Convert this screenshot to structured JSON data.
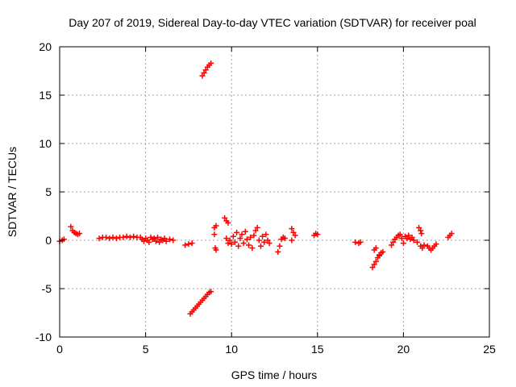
{
  "chart_data": {
    "type": "scatter",
    "title": "Day 207 of 2019, Sidereal Day-to-day VTEC variation (SDTVAR) for receiver poal",
    "xlabel": "GPS time / hours",
    "ylabel": "SDTVAR / TECUs",
    "xlim": [
      0,
      25
    ],
    "ylim": [
      -10,
      20
    ],
    "xticks": [
      0,
      5,
      10,
      15,
      20,
      25
    ],
    "yticks": [
      -10,
      -5,
      0,
      5,
      10,
      15,
      20
    ],
    "grid": true,
    "marker": "plus",
    "color": "#ff0000",
    "series": [
      {
        "name": "SDTVAR",
        "points": [
          [
            0.0,
            -0.1
          ],
          [
            0.15,
            0.0
          ],
          [
            0.25,
            0.1
          ],
          [
            0.65,
            1.4
          ],
          [
            0.75,
            1.0
          ],
          [
            0.85,
            0.8
          ],
          [
            0.95,
            0.7
          ],
          [
            1.05,
            0.6
          ],
          [
            1.15,
            0.7
          ],
          [
            2.3,
            0.2
          ],
          [
            2.5,
            0.3
          ],
          [
            2.7,
            0.3
          ],
          [
            2.9,
            0.2
          ],
          [
            3.1,
            0.3
          ],
          [
            3.3,
            0.2
          ],
          [
            3.5,
            0.3
          ],
          [
            3.7,
            0.3
          ],
          [
            3.9,
            0.4
          ],
          [
            4.1,
            0.3
          ],
          [
            4.3,
            0.4
          ],
          [
            4.5,
            0.3
          ],
          [
            4.7,
            0.3
          ],
          [
            4.8,
            0.1
          ],
          [
            4.9,
            -0.1
          ],
          [
            5.0,
            0.2
          ],
          [
            5.1,
            0.0
          ],
          [
            5.2,
            -0.2
          ],
          [
            5.3,
            0.3
          ],
          [
            5.4,
            0.1
          ],
          [
            5.5,
            0.2
          ],
          [
            5.6,
            -0.1
          ],
          [
            5.7,
            0.3
          ],
          [
            5.8,
            -0.2
          ],
          [
            5.9,
            0.1
          ],
          [
            6.0,
            0.0
          ],
          [
            6.1,
            0.2
          ],
          [
            6.2,
            -0.1
          ],
          [
            6.4,
            0.1
          ],
          [
            6.6,
            0.0
          ],
          [
            7.3,
            -0.5
          ],
          [
            7.5,
            -0.4
          ],
          [
            7.7,
            -0.3
          ],
          [
            7.6,
            -7.6
          ],
          [
            7.7,
            -7.4
          ],
          [
            7.8,
            -7.2
          ],
          [
            7.9,
            -7.0
          ],
          [
            8.0,
            -6.8
          ],
          [
            8.1,
            -6.6
          ],
          [
            8.2,
            -6.4
          ],
          [
            8.3,
            -6.2
          ],
          [
            8.4,
            -6.0
          ],
          [
            8.5,
            -5.8
          ],
          [
            8.6,
            -5.6
          ],
          [
            8.7,
            -5.4
          ],
          [
            8.8,
            -5.3
          ],
          [
            8.3,
            17.0
          ],
          [
            8.4,
            17.3
          ],
          [
            8.5,
            17.6
          ],
          [
            8.6,
            17.9
          ],
          [
            8.7,
            18.1
          ],
          [
            8.8,
            18.3
          ],
          [
            9.0,
            1.3
          ],
          [
            9.1,
            1.5
          ],
          [
            9.0,
            0.6
          ],
          [
            9.05,
            -0.8
          ],
          [
            9.1,
            -1.0
          ],
          [
            9.6,
            2.3
          ],
          [
            9.7,
            2.0
          ],
          [
            9.8,
            1.8
          ],
          [
            9.7,
            0.2
          ],
          [
            9.8,
            -0.3
          ],
          [
            9.9,
            0.0
          ],
          [
            10.0,
            -0.4
          ],
          [
            10.1,
            0.4
          ],
          [
            10.2,
            -0.2
          ],
          [
            10.3,
            0.8
          ],
          [
            10.4,
            -0.6
          ],
          [
            10.5,
            0.2
          ],
          [
            10.6,
            0.6
          ],
          [
            10.7,
            -0.3
          ],
          [
            10.8,
            0.9
          ],
          [
            10.9,
            0.1
          ],
          [
            11.0,
            -0.5
          ],
          [
            11.1,
            0.3
          ],
          [
            11.2,
            -0.8
          ],
          [
            11.3,
            0.5
          ],
          [
            11.4,
            1.0
          ],
          [
            11.5,
            1.3
          ],
          [
            11.6,
            0.0
          ],
          [
            11.7,
            -0.6
          ],
          [
            11.8,
            0.4
          ],
          [
            11.9,
            -0.2
          ],
          [
            12.0,
            0.6
          ],
          [
            12.1,
            0.0
          ],
          [
            12.2,
            -0.3
          ],
          [
            12.7,
            -1.2
          ],
          [
            12.8,
            -0.6
          ],
          [
            12.9,
            0.1
          ],
          [
            13.0,
            0.3
          ],
          [
            13.1,
            0.2
          ],
          [
            13.5,
            1.2
          ],
          [
            13.6,
            0.8
          ],
          [
            13.5,
            0.0
          ],
          [
            13.7,
            0.5
          ],
          [
            14.8,
            0.5
          ],
          [
            14.9,
            0.7
          ],
          [
            15.0,
            0.6
          ],
          [
            17.2,
            -0.2
          ],
          [
            17.4,
            -0.3
          ],
          [
            17.5,
            -0.2
          ],
          [
            18.2,
            -2.8
          ],
          [
            18.3,
            -2.5
          ],
          [
            18.4,
            -2.2
          ],
          [
            18.5,
            -1.8
          ],
          [
            18.6,
            -1.5
          ],
          [
            18.7,
            -1.3
          ],
          [
            18.8,
            -1.2
          ],
          [
            18.3,
            -1.0
          ],
          [
            18.4,
            -0.8
          ],
          [
            18.6,
            -1.6
          ],
          [
            19.3,
            -0.5
          ],
          [
            19.4,
            -0.2
          ],
          [
            19.5,
            0.1
          ],
          [
            19.6,
            0.3
          ],
          [
            19.7,
            0.5
          ],
          [
            19.8,
            0.6
          ],
          [
            19.9,
            0.2
          ],
          [
            20.0,
            -0.3
          ],
          [
            20.1,
            0.4
          ],
          [
            20.2,
            0.2
          ],
          [
            20.3,
            0.5
          ],
          [
            20.4,
            0.1
          ],
          [
            20.5,
            0.3
          ],
          [
            20.6,
            0.0
          ],
          [
            20.8,
            -0.2
          ],
          [
            20.9,
            1.3
          ],
          [
            21.0,
            1.0
          ],
          [
            21.05,
            0.7
          ],
          [
            21.0,
            -0.6
          ],
          [
            21.1,
            -0.8
          ],
          [
            21.2,
            -0.5
          ],
          [
            21.4,
            -0.6
          ],
          [
            21.5,
            -0.8
          ],
          [
            21.6,
            -1.0
          ],
          [
            21.7,
            -0.8
          ],
          [
            21.8,
            -0.6
          ],
          [
            21.9,
            -0.4
          ],
          [
            22.6,
            0.3
          ],
          [
            22.7,
            0.5
          ],
          [
            22.8,
            0.7
          ]
        ]
      }
    ]
  }
}
